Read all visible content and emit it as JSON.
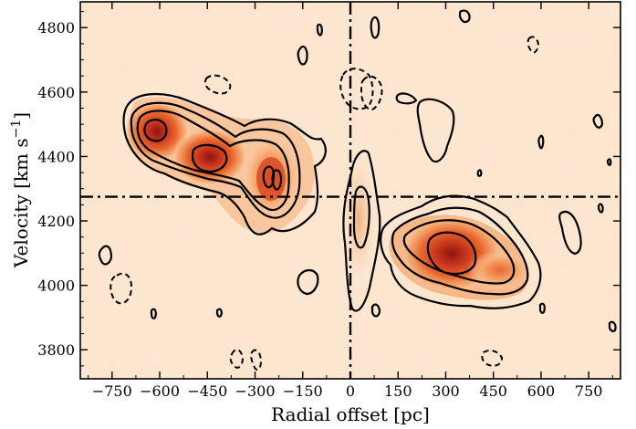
{
  "chart_data": {
    "type": "heatmap",
    "title": "",
    "xlabel": "Radial offset [pc]",
    "ylabel_main": "Velocity [km s",
    "ylabel_sup": "−1",
    "ylabel_close": "]",
    "xlim": [
      -850,
      850
    ],
    "ylim": [
      3710,
      4880
    ],
    "xticks": [
      -750,
      -600,
      -450,
      -300,
      -150,
      0,
      150,
      300,
      450,
      600,
      750
    ],
    "xtick_labels": [
      "−750",
      "−600",
      "−450",
      "−300",
      "−150",
      "0",
      "150",
      "300",
      "450",
      "600",
      "750"
    ],
    "yticks": [
      3800,
      4000,
      4200,
      4400,
      4600,
      4800
    ],
    "ytick_labels": [
      "3800",
      "4000",
      "4200",
      "4400",
      "4600",
      "4800"
    ],
    "grid": false,
    "reference_lines": {
      "x": 0,
      "y": 4275
    },
    "colormap": [
      "#fdf2e6",
      "#fbd9b8",
      "#f5a870",
      "#e8672f",
      "#c8361c",
      "#8e1510"
    ],
    "peaks": [
      {
        "x": -600,
        "y": 4480,
        "level": 5
      },
      {
        "x": -440,
        "y": 4400,
        "level": 5
      },
      {
        "x": -250,
        "y": 4340,
        "level": 4
      },
      {
        "x": 310,
        "y": 4110,
        "level": 5
      },
      {
        "x": 10,
        "y": 4240,
        "level": 2
      }
    ]
  }
}
